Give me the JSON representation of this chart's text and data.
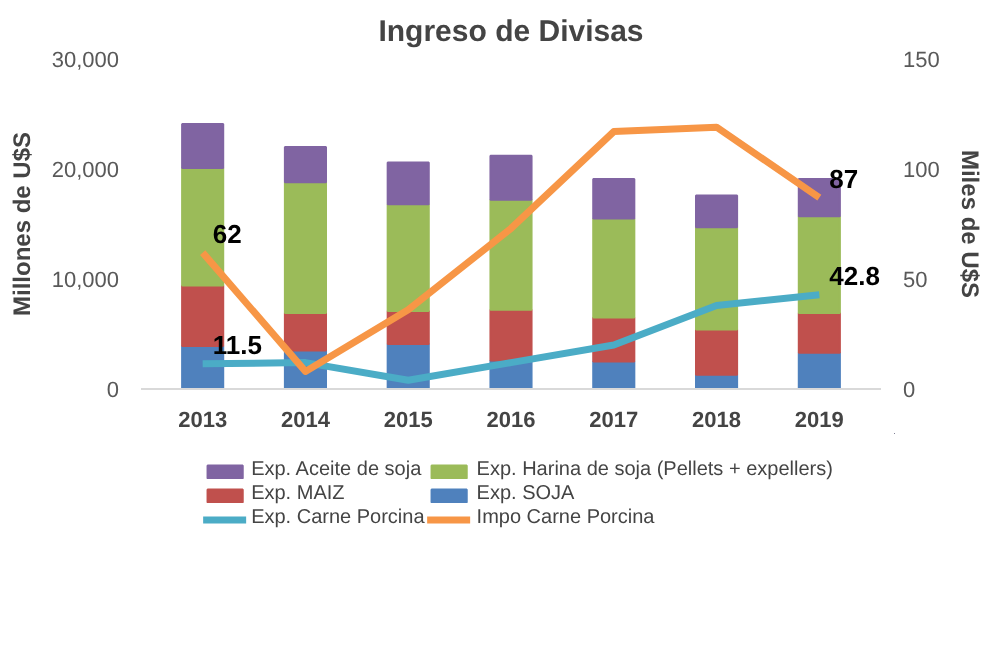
{
  "chart_data": {
    "type": "bar",
    "title": "Ingreso de Divisas",
    "ylabel": "Millones de U$S",
    "y2label": "Miles de U$S",
    "categories": [
      "2013",
      "2014",
      "2015",
      "2016",
      "2017",
      "2018",
      "2019"
    ],
    "stacked": true,
    "series": [
      {
        "name": "Exp. SOJA",
        "color": "#4f81bd",
        "values": [
          3900,
          3500,
          4100,
          2600,
          2500,
          1300,
          3300
        ]
      },
      {
        "name": "Exp. MAIZ",
        "color": "#c0504d",
        "values": [
          5500,
          3400,
          3000,
          4600,
          4000,
          4100,
          3600
        ]
      },
      {
        "name": "Exp. Harina de soja (Pellets + expellers)",
        "color": "#9bbb59",
        "values": [
          10700,
          11900,
          9700,
          10000,
          9000,
          9300,
          8800
        ]
      },
      {
        "name": "Exp. Aceite de soja",
        "color": "#8064a2",
        "values": [
          4000,
          3200,
          3800,
          4000,
          3600,
          2900,
          3400
        ]
      },
      {
        "name": "Exp. Carne Porcina",
        "type": "line",
        "axis": "y2",
        "color": "#4bacc6",
        "values": [
          11.5,
          12,
          4,
          12,
          20,
          38,
          42.8
        ],
        "value_labels": [
          "11.5",
          null,
          null,
          null,
          null,
          null,
          "42.8"
        ]
      },
      {
        "name": "Impo Carne Porcina",
        "type": "line",
        "axis": "y2",
        "color": "#f79646",
        "values": [
          62,
          8,
          36,
          73,
          117,
          119,
          87
        ],
        "value_labels": [
          "62",
          null,
          null,
          null,
          null,
          null,
          "87"
        ]
      }
    ],
    "ylim": [
      0,
      30000
    ],
    "yticks": [
      0,
      {
        "value": 10000,
        "label": "10,000"
      },
      {
        "value": 20000,
        "label": "20,000"
      },
      {
        "value": 30000,
        "label": "30,000"
      }
    ],
    "y2lim": [
      0,
      150
    ],
    "y2ticks": [
      0,
      50,
      100,
      150
    ],
    "grid": false,
    "legend": "bottom"
  }
}
